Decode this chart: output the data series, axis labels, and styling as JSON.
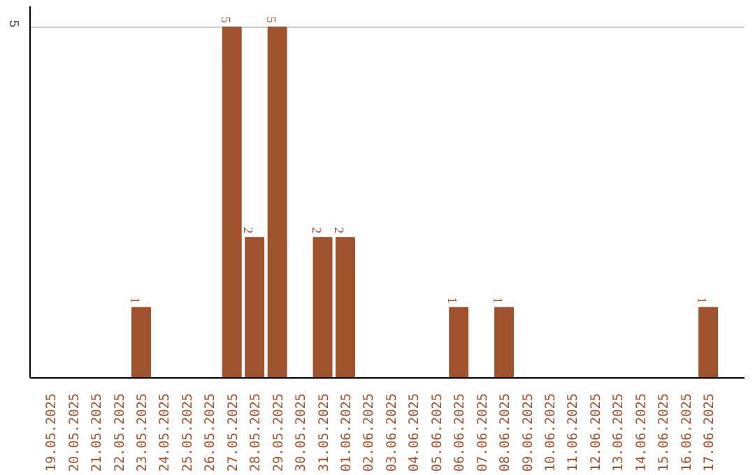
{
  "chart_data": {
    "type": "bar",
    "categories": [
      "19.05.2025",
      "20.05.2025",
      "21.05.2025",
      "22.05.2025",
      "23.05.2025",
      "24.05.2025",
      "25.05.2025",
      "26.05.2025",
      "27.05.2025",
      "28.05.2025",
      "29.05.2025",
      "30.05.2025",
      "31.05.2025",
      "01.06.2025",
      "02.06.2025",
      "03.06.2025",
      "04.06.2025",
      "05.06.2025",
      "06.06.2025",
      "07.06.2025",
      "08.06.2025",
      "09.06.2025",
      "10.06.2025",
      "11.06.2025",
      "12.06.2025",
      "13.06.2025",
      "14.06.2025",
      "15.06.2025",
      "16.06.2025",
      "17.06.2025"
    ],
    "values": [
      0,
      0,
      0,
      0,
      1,
      0,
      0,
      0,
      5,
      2,
      5,
      0,
      2,
      2,
      0,
      0,
      0,
      0,
      1,
      0,
      1,
      0,
      0,
      0,
      0,
      0,
      0,
      0,
      0,
      1
    ],
    "value_labels": [
      null,
      null,
      null,
      null,
      "1",
      null,
      null,
      null,
      "5",
      "2",
      "5",
      null,
      "2",
      "2",
      null,
      null,
      null,
      null,
      "1",
      null,
      "1",
      null,
      null,
      null,
      null,
      null,
      null,
      null,
      null,
      "1"
    ],
    "color": "#a0522d",
    "ylim": [
      0,
      5.3
    ],
    "yticks": [
      5
    ],
    "grid": "y"
  }
}
